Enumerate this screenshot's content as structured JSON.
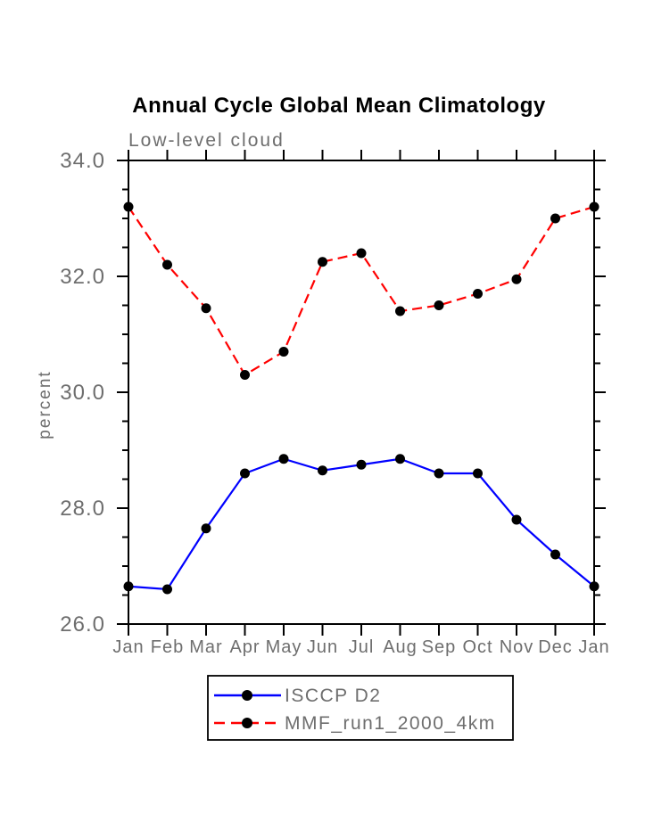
{
  "page": {
    "background": "#ffffff"
  },
  "chart_data": {
    "type": "line",
    "title": "Annual Cycle Global Mean Climatology",
    "subtitle": "Low-level cloud",
    "xlabel": "",
    "ylabel": "percent",
    "categories": [
      "Jan",
      "Feb",
      "Mar",
      "Apr",
      "May",
      "Jun",
      "Jul",
      "Aug",
      "Sep",
      "Oct",
      "Nov",
      "Dec",
      "Jan"
    ],
    "ylim": [
      26.0,
      34.0
    ],
    "yticks": {
      "major_values": [
        26.0,
        28.0,
        30.0,
        32.0,
        34.0
      ],
      "major_labels": [
        "26.0",
        "28.0",
        "30.0",
        "32.0",
        "34.0"
      ],
      "minor_step": 0.5
    },
    "grid": false,
    "legend_position": "bottom-center",
    "text_color": "#6e6e6e",
    "axis_color": "#000000",
    "series": [
      {
        "name": "ISCCP D2",
        "color": "#0000ff",
        "style": "solid",
        "marker": "filled-circle",
        "marker_color": "#000000",
        "values": [
          26.65,
          26.6,
          27.65,
          28.6,
          28.85,
          28.65,
          28.75,
          28.85,
          28.6,
          28.6,
          27.8,
          27.2,
          26.65
        ]
      },
      {
        "name": "MMF_run1_2000_4km",
        "color": "#ff0000",
        "style": "dashed",
        "marker": "filled-circle",
        "marker_color": "#000000",
        "values": [
          33.2,
          32.2,
          31.45,
          30.3,
          30.7,
          32.25,
          32.4,
          31.4,
          31.5,
          31.7,
          31.95,
          33.0,
          33.2
        ]
      }
    ]
  }
}
